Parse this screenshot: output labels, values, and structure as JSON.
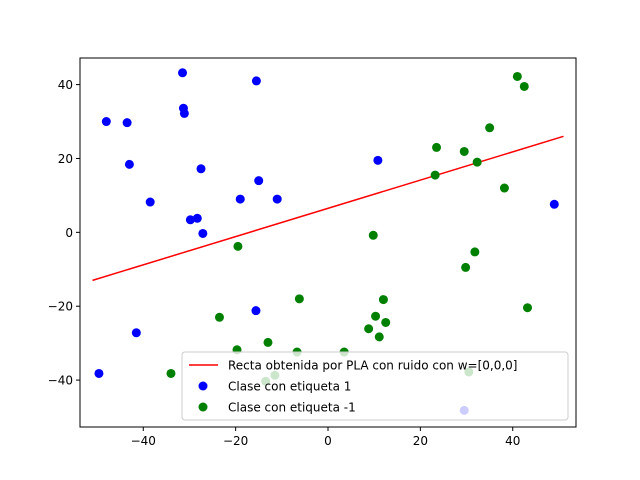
{
  "chart_data": {
    "type": "scatter",
    "xlim": [
      -53.7,
      53.7
    ],
    "ylim": [
      -52.7,
      47.2
    ],
    "x_ticks": [
      -40,
      -20,
      0,
      20,
      40
    ],
    "y_ticks": [
      -40,
      -20,
      0,
      20,
      40
    ],
    "grid": false,
    "legend_placement": "lower-right",
    "line": {
      "name": "Recta obtenida por PLA con ruido con w=[0,0,0]",
      "color": "#ff0000",
      "x": [
        -51,
        51
      ],
      "y": [
        -13,
        26
      ]
    },
    "series": [
      {
        "name": "Clase con etiqueta 1",
        "color": "#0000ff",
        "points": [
          [
            -31.5,
            43.2
          ],
          [
            -15.5,
            41.0
          ],
          [
            -48.0,
            30.0
          ],
          [
            -43.5,
            29.7
          ],
          [
            -31.3,
            33.6
          ],
          [
            -31.1,
            32.2
          ],
          [
            -43.0,
            18.4
          ],
          [
            -27.5,
            17.2
          ],
          [
            -15.0,
            14.0
          ],
          [
            10.8,
            19.5
          ],
          [
            -38.5,
            8.2
          ],
          [
            -19.0,
            9.0
          ],
          [
            -11.0,
            9.0
          ],
          [
            -29.8,
            3.4
          ],
          [
            -28.3,
            3.8
          ],
          [
            -27.1,
            -0.3
          ],
          [
            49.0,
            7.6
          ],
          [
            -15.6,
            -21.2
          ],
          [
            -41.5,
            -27.2
          ],
          [
            -49.6,
            -38.2
          ],
          [
            29.5,
            -48.2
          ]
        ]
      },
      {
        "name": "Clase con etiqueta -1",
        "color": "#008000",
        "points": [
          [
            41.0,
            42.2
          ],
          [
            42.5,
            39.5
          ],
          [
            35.0,
            28.3
          ],
          [
            23.5,
            23.0
          ],
          [
            29.5,
            21.9
          ],
          [
            32.3,
            19.0
          ],
          [
            23.2,
            15.5
          ],
          [
            38.2,
            12.0
          ],
          [
            -19.5,
            -3.8
          ],
          [
            9.8,
            -0.8
          ],
          [
            29.8,
            -9.5
          ],
          [
            31.8,
            -5.3
          ],
          [
            43.2,
            -20.4
          ],
          [
            -6.2,
            -18.0
          ],
          [
            12.0,
            -18.2
          ],
          [
            -23.5,
            -23.0
          ],
          [
            10.3,
            -22.7
          ],
          [
            12.5,
            -24.4
          ],
          [
            8.8,
            -26.1
          ],
          [
            11.1,
            -28.3
          ],
          [
            -13.0,
            -29.8
          ],
          [
            -19.7,
            -31.8
          ],
          [
            -6.7,
            -32.4
          ],
          [
            3.5,
            -32.4
          ],
          [
            -34.0,
            -38.2
          ],
          [
            -11.5,
            -38.7
          ],
          [
            -13.5,
            -40.3
          ],
          [
            30.5,
            -37.8
          ]
        ]
      }
    ]
  }
}
